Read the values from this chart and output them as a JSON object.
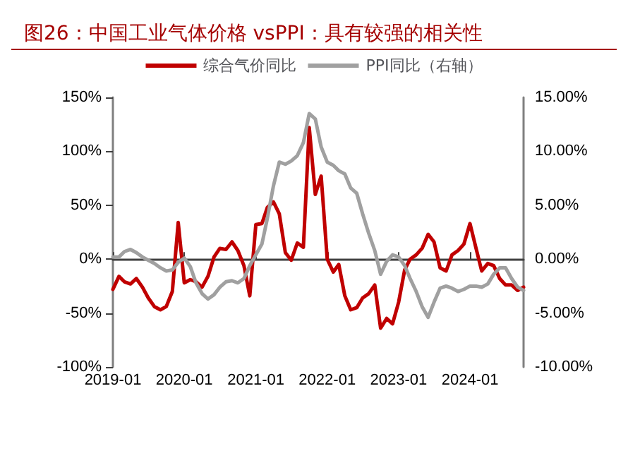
{
  "chart_data": {
    "type": "line",
    "title": "图26：中国工业气体价格 vsPPI：具有较强的相关性",
    "xlim": [
      "2019-01",
      "2024-10"
    ],
    "xticks": [
      "2019-01",
      "2020-01",
      "2021-01",
      "2022-01",
      "2023-01",
      "2024-01"
    ],
    "ylim": [
      -100,
      150
    ],
    "yticks": [
      {
        "value": -100,
        "label": "-100%"
      },
      {
        "value": -50,
        "label": "-50%"
      },
      {
        "value": 0,
        "label": "0%"
      },
      {
        "value": 50,
        "label": "50%"
      },
      {
        "value": 100,
        "label": "100%"
      },
      {
        "value": 150,
        "label": "150%"
      }
    ],
    "y2lim": [
      -10,
      15
    ],
    "y2ticks": [
      {
        "value": -10,
        "label": "-10.00%"
      },
      {
        "value": -5,
        "label": "-5.00%"
      },
      {
        "value": 0,
        "label": "0.00%"
      },
      {
        "value": 5,
        "label": "5.00%"
      },
      {
        "value": 10,
        "label": "10.00%"
      },
      {
        "value": 15,
        "label": "15.00%"
      }
    ],
    "legend": "top",
    "marker": "none",
    "line_style": "solid",
    "series": [
      {
        "name": "综合气价同比",
        "color": "#c00000",
        "values": [
          -28,
          -16,
          -21,
          -23,
          -18,
          -26,
          -36,
          -44,
          -47,
          -44,
          -30,
          34,
          -22,
          -19,
          -21,
          -26,
          -16,
          2,
          10,
          9,
          16,
          8,
          -6,
          -34,
          32,
          33,
          48,
          53,
          42,
          6,
          -1,
          15,
          11,
          122,
          60,
          77,
          0,
          -12,
          -5,
          -34,
          -47,
          -45,
          -36,
          -32,
          -24,
          -64,
          -55,
          -60,
          -40,
          -10,
          0,
          4,
          10,
          23,
          16,
          -8,
          -11,
          4,
          8,
          14,
          33,
          10,
          -11,
          -4,
          -6,
          -18,
          -24,
          -24,
          -29,
          -26
        ]
      },
      {
        "name": "PPI同比（右轴）",
        "color": "#a0a0a0",
        "axis": "y2",
        "values": [
          0.2,
          0.2,
          0.7,
          0.9,
          0.6,
          0.2,
          -0.1,
          -0.4,
          -0.8,
          -1.1,
          -1.0,
          -0.3,
          0.1,
          -0.7,
          -2.2,
          -3.2,
          -3.7,
          -3.3,
          -2.6,
          -2.1,
          -2.0,
          -2.2,
          -1.8,
          -0.6,
          0.4,
          1.4,
          3.8,
          6.8,
          9.0,
          8.8,
          9.1,
          9.6,
          10.8,
          13.5,
          13.0,
          10.4,
          9.0,
          8.7,
          8.2,
          7.9,
          6.6,
          6.1,
          4.2,
          2.4,
          0.8,
          -1.4,
          -0.2,
          0.4,
          0.2,
          -0.6,
          -1.8,
          -3.0,
          -4.4,
          -5.4,
          -4.0,
          -2.7,
          -2.5,
          -2.7,
          -3.0,
          -2.8,
          -2.5,
          -2.5,
          -2.6,
          -2.3,
          -1.4,
          -0.8,
          -0.8,
          -1.8,
          -2.6,
          -2.9
        ]
      }
    ],
    "x": [
      "2019-01",
      "2019-02",
      "2019-03",
      "2019-04",
      "2019-05",
      "2019-06",
      "2019-07",
      "2019-08",
      "2019-09",
      "2019-10",
      "2019-11",
      "2019-12",
      "2020-01",
      "2020-02",
      "2020-03",
      "2020-04",
      "2020-05",
      "2020-06",
      "2020-07",
      "2020-08",
      "2020-09",
      "2020-10",
      "2020-11",
      "2020-12",
      "2021-01",
      "2021-02",
      "2021-03",
      "2021-04",
      "2021-05",
      "2021-06",
      "2021-07",
      "2021-08",
      "2021-09",
      "2021-10",
      "2021-11",
      "2021-12",
      "2022-01",
      "2022-02",
      "2022-03",
      "2022-04",
      "2022-05",
      "2022-06",
      "2022-07",
      "2022-08",
      "2022-09",
      "2022-10",
      "2022-11",
      "2022-12",
      "2023-01",
      "2023-02",
      "2023-03",
      "2023-04",
      "2023-05",
      "2023-06",
      "2023-07",
      "2023-08",
      "2023-09",
      "2023-10",
      "2023-11",
      "2023-12",
      "2024-01",
      "2024-02",
      "2024-03",
      "2024-04",
      "2024-05",
      "2024-06",
      "2024-07",
      "2024-08",
      "2024-09",
      "2024-10"
    ]
  }
}
